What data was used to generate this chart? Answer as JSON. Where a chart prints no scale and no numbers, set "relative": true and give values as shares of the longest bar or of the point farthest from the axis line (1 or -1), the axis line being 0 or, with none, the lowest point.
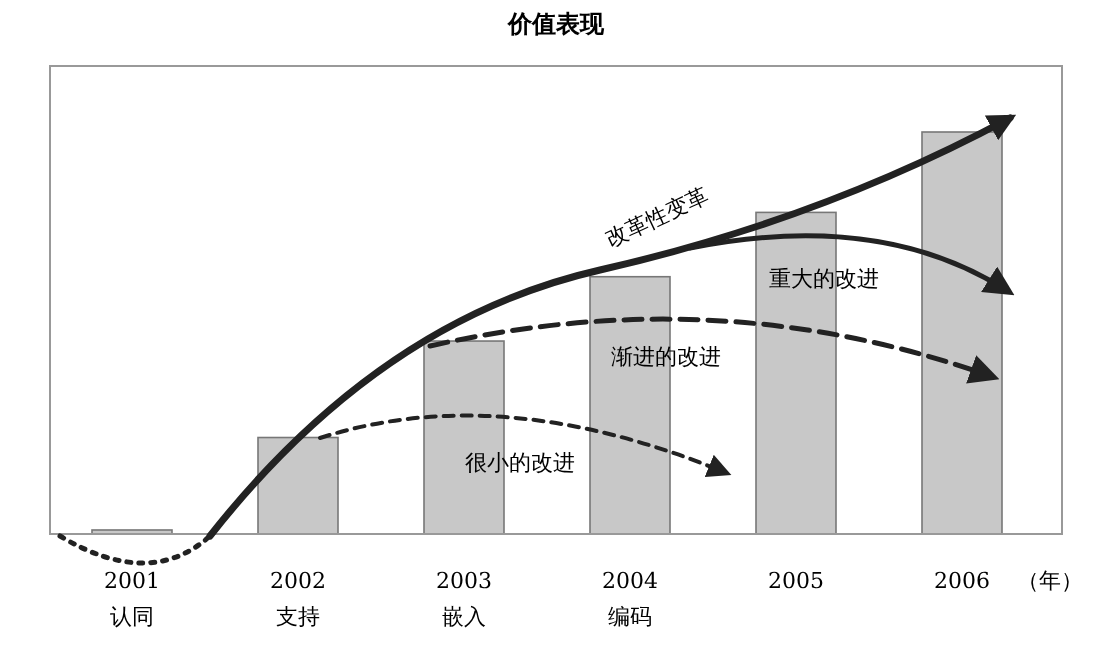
{
  "chart_data": {
    "type": "bar",
    "title": "价值表现",
    "relative": true,
    "xlabel": "（年）",
    "categories": [
      "2001\n认同",
      "2002\n支持",
      "2003\n嵌入",
      "2004\n编码",
      "2005",
      "2006"
    ],
    "values": [
      0.01,
      0.24,
      0.48,
      0.64,
      0.8,
      1.0
    ],
    "color": "#c8c8c8",
    "annotations": [
      "改革性变革",
      "重大的改进",
      "渐进的改进",
      "很小的改进"
    ]
  }
}
